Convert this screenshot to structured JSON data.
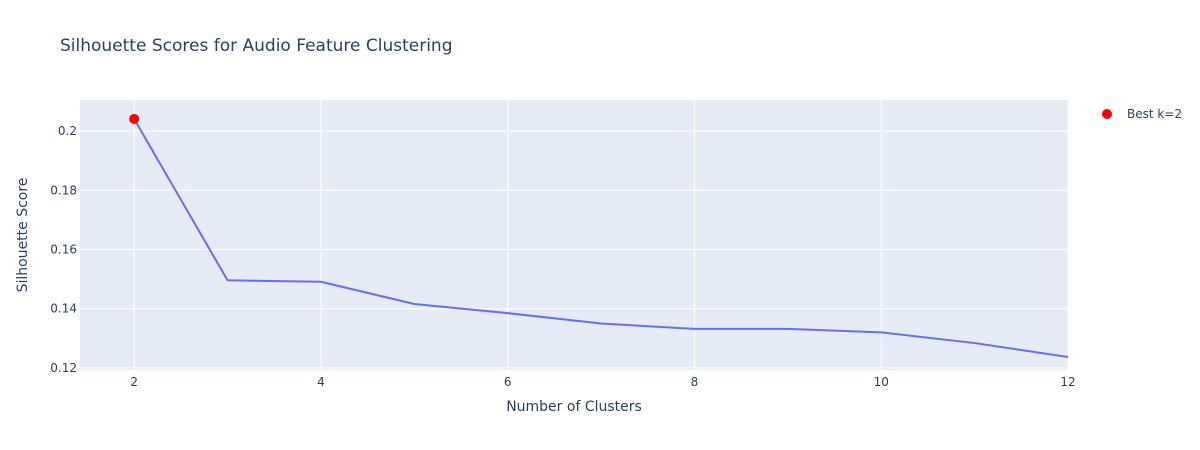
{
  "chart_data": {
    "type": "line",
    "title": "Silhouette Scores for Audio Feature Clustering",
    "xlabel": "Number of Clusters",
    "ylabel": "Silhouette Score",
    "xlim": [
      1.42,
      12
    ],
    "ylim": [
      0.1193,
      0.2105
    ],
    "xticks": [
      2,
      4,
      6,
      8,
      10,
      12
    ],
    "yticks": [
      0.12,
      0.14,
      0.16,
      0.18,
      0.2
    ],
    "ytick_labels": [
      "0.12",
      "0.14",
      "0.16",
      "0.18",
      "0.2"
    ],
    "grid": true,
    "legend_position": "top-right",
    "colors": {
      "line": "#636efa",
      "best_marker": "#ff0000",
      "plot_bg": "#e5ecf6",
      "grid": "#ffffff",
      "text": "#2a3f5f"
    },
    "series": [
      {
        "x": [
          2,
          3,
          4,
          5,
          6,
          7,
          8,
          9,
          10,
          11,
          12
        ],
        "y": [
          0.2041,
          0.1496,
          0.1491,
          0.1416,
          0.1385,
          0.135,
          0.1332,
          0.1332,
          0.132,
          0.1284,
          0.1237
        ]
      }
    ],
    "highlight": {
      "name": "Best k=2",
      "x": 2,
      "y": 0.2041
    }
  }
}
